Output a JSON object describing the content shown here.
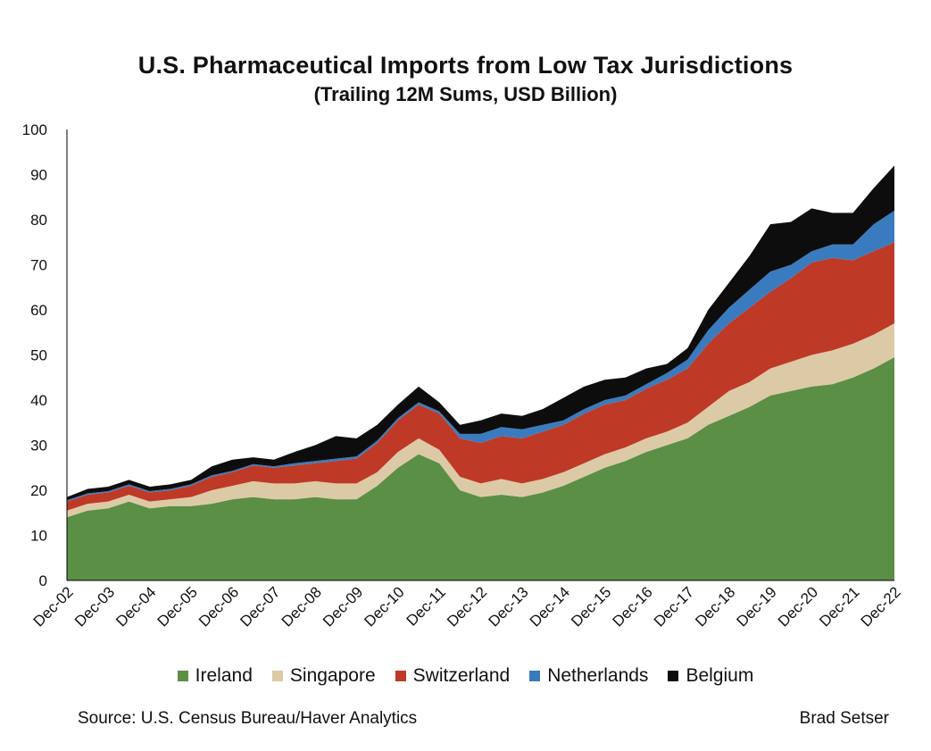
{
  "chart_data": {
    "type": "area",
    "stacked": true,
    "title": "U.S. Pharmaceutical Imports from Low Tax Jurisdictions",
    "subtitle": "(Trailing 12M Sums, USD Billion)",
    "ylim": [
      0,
      100
    ],
    "yticks": [
      "0",
      "10",
      "20",
      "30",
      "40",
      "50",
      "60",
      "70",
      "80",
      "90",
      "100"
    ],
    "x_tick_labels": [
      "Dec-02",
      "Dec-03",
      "Dec-04",
      "Dec-05",
      "Dec-06",
      "Dec-07",
      "Dec-08",
      "Dec-09",
      "Dec-10",
      "Dec-11",
      "Dec-12",
      "Dec-13",
      "Dec-14",
      "Dec-15",
      "Dec-16",
      "Dec-17",
      "Dec-18",
      "Dec-19",
      "Dec-20",
      "Dec-21",
      "Dec-22"
    ],
    "x": [
      "Dec-02",
      "Jun-03",
      "Dec-03",
      "Jun-04",
      "Dec-04",
      "Jun-05",
      "Dec-05",
      "Jun-06",
      "Dec-06",
      "Jun-07",
      "Dec-07",
      "Jun-08",
      "Dec-08",
      "Jun-09",
      "Dec-09",
      "Jun-10",
      "Dec-10",
      "Jun-11",
      "Dec-11",
      "Jun-12",
      "Dec-12",
      "Jun-13",
      "Dec-13",
      "Jun-14",
      "Dec-14",
      "Jun-15",
      "Dec-15",
      "Jun-16",
      "Dec-16",
      "Jun-17",
      "Dec-17",
      "Jun-18",
      "Dec-18",
      "Jun-19",
      "Dec-19",
      "Jun-20",
      "Dec-20",
      "Jun-21",
      "Dec-21",
      "Jun-22",
      "Dec-22"
    ],
    "series": [
      {
        "name": "Ireland",
        "color": "#5b8f45",
        "values": [
          14.0,
          15.5,
          16.0,
          17.5,
          16.0,
          16.5,
          16.5,
          17.0,
          18.0,
          18.5,
          18.0,
          18.0,
          18.5,
          18.0,
          18.0,
          21.0,
          25.0,
          28.0,
          26.0,
          20.0,
          18.5,
          19.0,
          18.5,
          19.5,
          21.0,
          23.0,
          25.0,
          26.5,
          28.5,
          30.0,
          31.5,
          34.5,
          36.5,
          38.5,
          41.0,
          42.0,
          43.0,
          43.5,
          45.0,
          47.0,
          49.5
        ]
      },
      {
        "name": "Singapore",
        "color": "#dccaa6",
        "values": [
          1.5,
          1.5,
          1.5,
          1.5,
          1.5,
          1.5,
          2.0,
          3.0,
          3.0,
          3.5,
          3.5,
          3.5,
          3.5,
          3.5,
          3.5,
          3.0,
          3.5,
          3.5,
          3.0,
          3.0,
          3.0,
          3.5,
          3.0,
          3.0,
          3.0,
          3.0,
          3.0,
          3.0,
          3.0,
          3.0,
          3.5,
          4.0,
          5.5,
          5.5,
          6.0,
          6.5,
          7.0,
          7.5,
          7.5,
          7.5,
          7.5
        ]
      },
      {
        "name": "Switzerland",
        "color": "#be3a26",
        "values": [
          2.0,
          2.0,
          2.0,
          2.0,
          2.0,
          2.0,
          2.5,
          3.0,
          3.0,
          3.5,
          3.5,
          4.0,
          4.0,
          5.0,
          5.5,
          6.5,
          7.0,
          7.5,
          8.0,
          8.5,
          9.0,
          9.5,
          10.0,
          10.5,
          10.5,
          11.0,
          11.0,
          10.5,
          11.0,
          11.5,
          12.0,
          14.0,
          15.0,
          16.5,
          17.0,
          18.5,
          20.5,
          20.5,
          18.5,
          18.5,
          18.0
        ]
      },
      {
        "name": "Netherlands",
        "color": "#3a7bbf",
        "values": [
          0.3,
          0.3,
          0.3,
          0.3,
          0.3,
          0.3,
          0.3,
          0.3,
          0.3,
          0.3,
          0.3,
          0.5,
          0.5,
          0.5,
          0.5,
          0.5,
          0.5,
          0.5,
          0.5,
          1.0,
          2.0,
          2.0,
          2.0,
          1.5,
          1.0,
          1.0,
          1.0,
          1.0,
          1.0,
          1.5,
          2.0,
          3.0,
          3.5,
          4.0,
          4.5,
          3.0,
          2.5,
          3.0,
          3.5,
          6.0,
          7.0
        ]
      },
      {
        "name": "Belgium",
        "color": "#0d0d0d",
        "values": [
          0.7,
          1.0,
          1.0,
          1.0,
          1.0,
          1.0,
          1.0,
          2.0,
          2.5,
          1.5,
          1.5,
          2.5,
          3.5,
          5.0,
          4.0,
          3.5,
          3.0,
          3.5,
          2.0,
          2.0,
          3.0,
          3.0,
          3.0,
          3.5,
          5.0,
          5.0,
          4.5,
          4.0,
          3.5,
          2.0,
          2.5,
          4.5,
          5.5,
          7.5,
          10.5,
          9.5,
          9.5,
          7.0,
          7.0,
          8.0,
          10.0
        ]
      }
    ]
  },
  "source": "Source: U.S. Census Bureau/Haver Analytics",
  "author": "Brad Setser"
}
